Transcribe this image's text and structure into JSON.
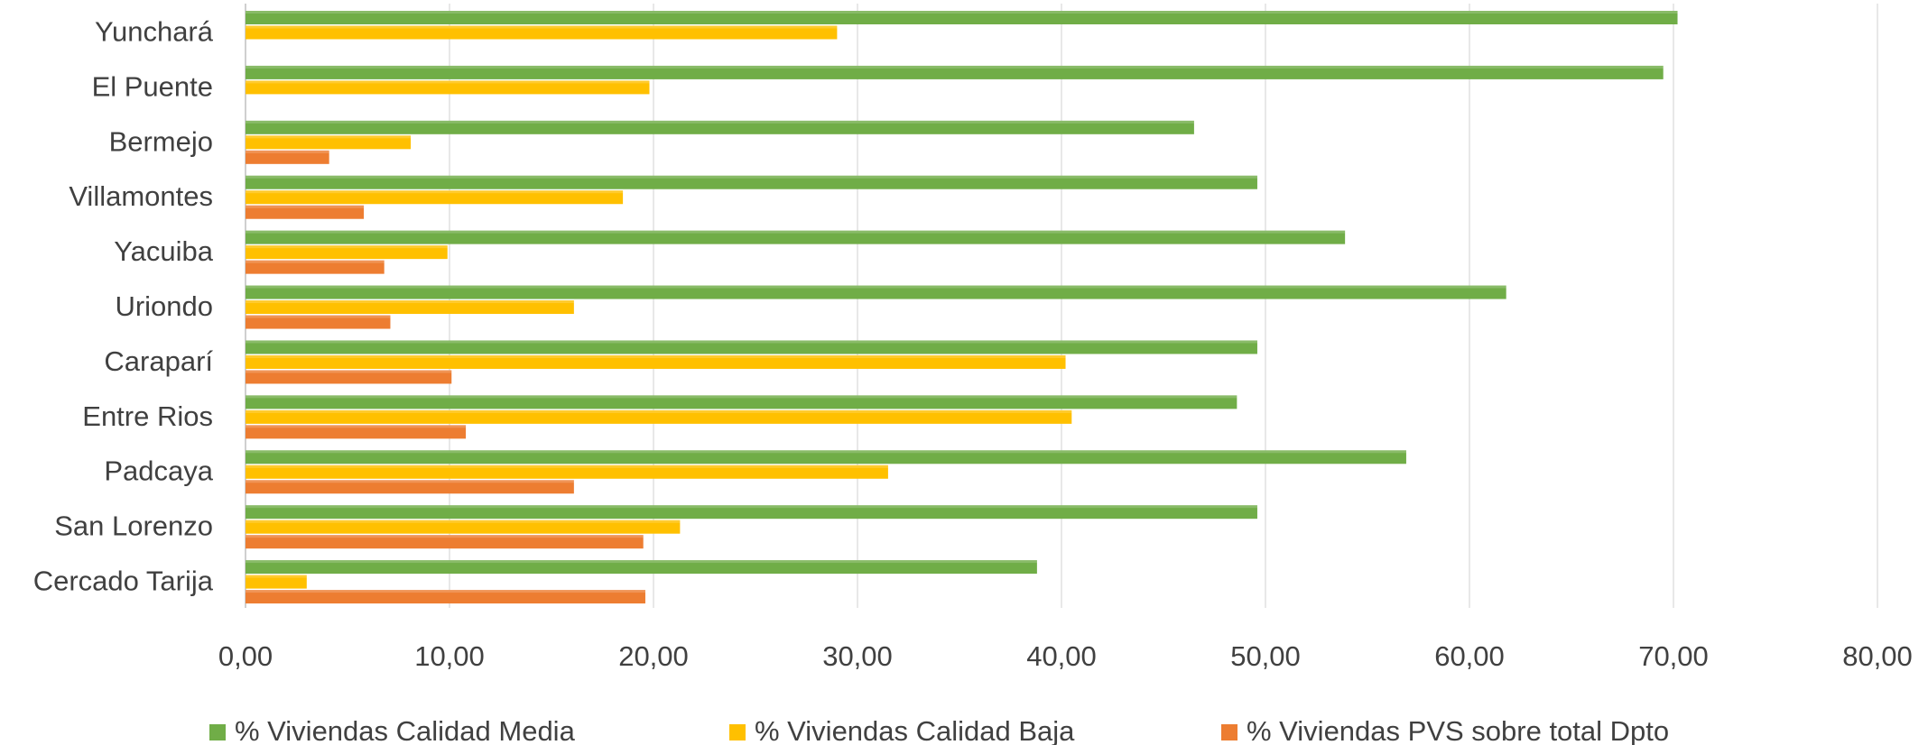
{
  "chart_data": {
    "type": "bar",
    "orientation": "horizontal",
    "categories": [
      "Yunchará",
      "El Puente",
      "Bermejo",
      "Villamontes",
      "Yacuiba",
      "Uriondo",
      "Caraparí",
      "Entre Rios",
      "Padcaya",
      "San Lorenzo",
      "Cercado Tarija"
    ],
    "series": [
      {
        "name": "% Viviendas Calidad Media",
        "color": "#70ad47",
        "values": [
          70.2,
          69.5,
          46.5,
          49.6,
          53.9,
          61.8,
          49.6,
          48.6,
          56.9,
          49.6,
          38.8
        ]
      },
      {
        "name": "% Viviendas Calidad Baja",
        "color": "#ffc000",
        "values": [
          29.0,
          19.8,
          8.1,
          18.5,
          9.9,
          16.1,
          40.2,
          40.5,
          31.5,
          21.3,
          3.0
        ]
      },
      {
        "name": "% Viviendas PVS sobre total Dpto",
        "color": "#ed7d31",
        "values": [
          null,
          null,
          4.1,
          5.8,
          6.8,
          7.1,
          10.1,
          10.8,
          16.1,
          19.5,
          19.6
        ]
      }
    ],
    "xlim": [
      0,
      80
    ],
    "xticks": [
      "0,00",
      "10,00",
      "20,00",
      "30,00",
      "40,00",
      "50,00",
      "60,00",
      "70,00",
      "80,00"
    ],
    "grid": true,
    "legend_position": "bottom"
  }
}
